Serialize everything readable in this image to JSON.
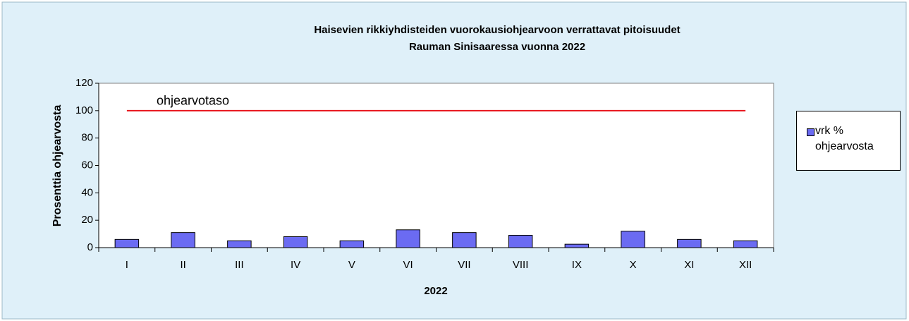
{
  "chart_data": {
    "type": "bar",
    "title": [
      "Haisevien rikkiyhdisteiden vuorokausiohjearvoon verrattavat pitoisuudet",
      "Rauman Sinisaaressa vuonna 2022"
    ],
    "x_label": "2022",
    "y_label": "Prosenttia ohjearvosta",
    "categories": [
      "I",
      "II",
      "III",
      "IV",
      "V",
      "VI",
      "VII",
      "VIII",
      "IX",
      "X",
      "XI",
      "XII"
    ],
    "series": [
      {
        "name": "vrk % ohjearvosta",
        "color": "#6b6bf2",
        "values": [
          6,
          11,
          5,
          8,
          5,
          13,
          11,
          9,
          2.5,
          12,
          6,
          5
        ]
      }
    ],
    "reference_line": {
      "value": 100,
      "label": "ohjearvotaso",
      "color": "#e8141c"
    },
    "ylim": [
      0,
      120
    ],
    "yticks": [
      0,
      20,
      40,
      60,
      80,
      100,
      120
    ],
    "grid": false,
    "legend": "right"
  }
}
